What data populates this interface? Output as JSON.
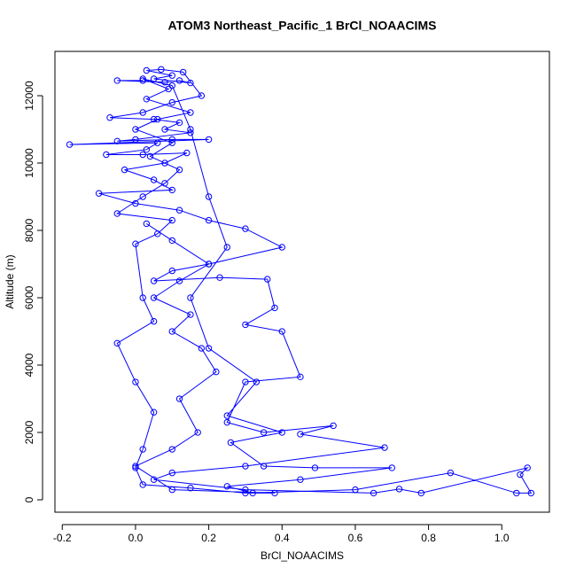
{
  "chart_data": {
    "type": "line",
    "title": "ATOM3 Northeast_Pacific_1 BrCl_NOAACIMS",
    "x_label": "BrCl_NOAACIMS",
    "y_label": "Altitude (m)",
    "color": "#0000ff",
    "markers": true,
    "xlim": [
      -0.22,
      1.13
    ],
    "ylim": [
      -368,
      13316
    ],
    "xticks": [
      -0.2,
      {
        "value": 0,
        "label": "0.0"
      },
      0.2,
      0.4,
      0.6,
      0.8,
      {
        "value": 1,
        "label": "1.0"
      }
    ],
    "yticks": [
      0,
      2000,
      4000,
      6000,
      8000,
      10000,
      12000
    ],
    "x": [
      0.02,
      -0.05,
      0.08,
      0.12,
      0.15,
      0.05,
      0.1,
      0.03,
      0.07,
      0.13,
      0.18,
      0.1,
      0.02,
      -0.07,
      0.05,
      0.12,
      0.08,
      0.15,
      0.0,
      -0.05,
      0.1,
      0.2,
      -0.18,
      0.06,
      0.03,
      -0.08,
      0.02,
      0.14,
      0.08,
      -0.03,
      0.05,
      0.1,
      -0.1,
      0.0,
      0.12,
      0.2,
      0.3,
      0.4,
      0.2,
      0.1,
      0.05,
      0.23,
      0.36,
      0.38,
      0.3,
      0.4,
      0.45,
      0.3,
      0.25,
      0.35,
      0.54,
      0.45,
      0.68,
      0.3,
      0.1,
      0.05,
      0.3,
      0.65,
      0.72,
      0.78,
      1.07,
      1.05,
      1.08,
      1.04,
      0.86,
      0.6,
      0.3,
      0.15,
      0.02,
      0.0,
      0.02,
      0.05,
      0.0,
      -0.05,
      0.05,
      0.02,
      0.0,
      0.06,
      0.1,
      -0.05,
      0.02,
      0.08,
      0.12,
      0.04,
      0.1,
      0.0,
      0.06,
      0.15,
      0.03,
      0.09,
      0.02,
      0.1,
      0.15,
      0.2,
      0.25,
      0.15,
      0.2,
      0.33,
      0.25,
      0.4,
      0.26,
      0.35,
      0.49,
      0.7,
      0.45,
      0.25,
      0.32,
      0.38,
      0.1,
      0.0,
      0.1,
      0.17,
      0.12,
      0.22,
      0.18,
      0.1,
      0.15,
      0.05,
      0.12,
      0.2,
      0.1,
      0.03
    ],
    "values": [
      12450,
      12450,
      12400,
      12450,
      12380,
      12500,
      12600,
      12750,
      12780,
      12700,
      12000,
      11800,
      11500,
      11350,
      11300,
      11200,
      11000,
      10900,
      10700,
      10650,
      10700,
      10700,
      10550,
      10600,
      10400,
      10250,
      10250,
      10300,
      10000,
      9800,
      9500,
      9200,
      9100,
      8800,
      8600,
      8300,
      8050,
      7500,
      7000,
      6800,
      6500,
      6600,
      6550,
      5700,
      5200,
      5000,
      3650,
      3500,
      2300,
      2000,
      2200,
      1950,
      1550,
      1000,
      800,
      600,
      300,
      200,
      320,
      200,
      950,
      750,
      200,
      200,
      800,
      300,
      200,
      350,
      450,
      950,
      1500,
      2600,
      3500,
      4650,
      5300,
      6000,
      7600,
      7900,
      8300,
      8500,
      9000,
      9400,
      9800,
      10200,
      10600,
      11000,
      11300,
      11500,
      11900,
      12200,
      12500,
      12300,
      11000,
      9000,
      7500,
      6000,
      4500,
      3500,
      2500,
      2000,
      1700,
      1000,
      950,
      950,
      600,
      400,
      200,
      200,
      300,
      1000,
      1500,
      2000,
      3000,
      3800,
      4500,
      5000,
      5500,
      6000,
      6500,
      7000,
      7700,
      8200
    ]
  }
}
